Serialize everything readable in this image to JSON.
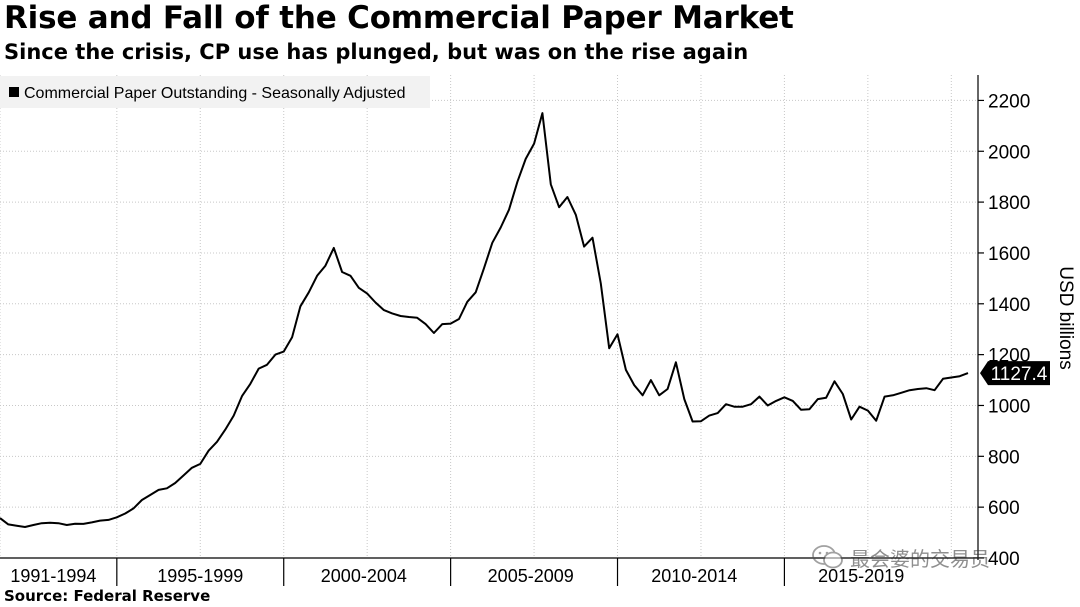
{
  "header": {
    "title": "Rise and Fall of the Commercial Paper Market",
    "subtitle": "Since the crisis, CP use has plunged, but was on the rise again"
  },
  "footer": {
    "source": "Source: Federal Reserve",
    "watermark": "最会婆的交易员"
  },
  "colors": {
    "line": "#000000",
    "grid": "#c8c8c8",
    "legend_bg": "#f2f2f2",
    "badge_bg": "#000000",
    "badge_text": "#ffffff"
  },
  "chart_data": {
    "type": "line",
    "title": "Rise and Fall of the Commercial Paper Market",
    "subtitle": "Since the crisis, CP use has plunged, but was on the rise again",
    "xlabel": "",
    "ylabel": "USD billions",
    "ylim": [
      400,
      2300
    ],
    "yticks": [
      400,
      600,
      800,
      1000,
      1200,
      1400,
      1600,
      1800,
      2000,
      2200
    ],
    "xlim": [
      1991.0,
      2020.0
    ],
    "x_period_labels": [
      "1991-1994",
      "1995-1999",
      "2000-2004",
      "2005-2009",
      "2010-2014",
      "2015-2019"
    ],
    "x_period_centers": [
      1992.6,
      1997.0,
      2001.9,
      2006.9,
      2011.8,
      2016.8
    ],
    "x_boundaries": [
      1994.5,
      1999.5,
      2004.5,
      2009.5,
      2014.5
    ],
    "x_gridlines": [
      1991.0,
      1994.5,
      1997.0,
      1999.5,
      2002.0,
      2004.5,
      2007.0,
      2009.5,
      2012.0,
      2014.5,
      2017.0,
      2019.5
    ],
    "grid": true,
    "legend": {
      "position": "top-left",
      "entries": [
        "Commercial Paper Outstanding - Seasonally Adjusted"
      ]
    },
    "last_value_label": "1127.4",
    "series": [
      {
        "name": "Commercial Paper Outstanding - Seasonally Adjusted",
        "x": [
          1991.0,
          1991.25,
          1991.5,
          1991.75,
          1992.0,
          1992.25,
          1992.5,
          1992.75,
          1993.0,
          1993.25,
          1993.5,
          1993.75,
          1994.0,
          1994.25,
          1994.5,
          1994.75,
          1995.0,
          1995.25,
          1995.5,
          1995.75,
          1996.0,
          1996.25,
          1996.5,
          1996.75,
          1997.0,
          1997.25,
          1997.5,
          1997.75,
          1998.0,
          1998.25,
          1998.5,
          1998.75,
          1999.0,
          1999.25,
          1999.5,
          1999.75,
          2000.0,
          2000.25,
          2000.5,
          2000.75,
          2001.0,
          2001.25,
          2001.5,
          2001.75,
          2002.0,
          2002.25,
          2002.5,
          2002.75,
          2003.0,
          2003.25,
          2003.5,
          2003.75,
          2004.0,
          2004.25,
          2004.5,
          2004.75,
          2005.0,
          2005.25,
          2005.5,
          2005.75,
          2006.0,
          2006.25,
          2006.5,
          2006.75,
          2007.0,
          2007.25,
          2007.5,
          2007.75,
          2008.0,
          2008.25,
          2008.5,
          2008.75,
          2009.0,
          2009.25,
          2009.5,
          2009.75,
          2010.0,
          2010.25,
          2010.5,
          2010.75,
          2011.0,
          2011.25,
          2011.5,
          2011.75,
          2012.0,
          2012.25,
          2012.5,
          2012.75,
          2013.0,
          2013.25,
          2013.5,
          2013.75,
          2014.0,
          2014.25,
          2014.5,
          2014.75,
          2015.0,
          2015.25,
          2015.5,
          2015.75,
          2016.0,
          2016.25,
          2016.5,
          2016.75,
          2017.0,
          2017.25,
          2017.5,
          2017.75,
          2018.0,
          2018.25,
          2018.5,
          2018.75,
          2019.0,
          2019.25,
          2019.5,
          2019.75,
          2020.0
        ],
        "values": [
          557,
          532,
          527,
          522,
          530,
          537,
          539,
          537,
          530,
          535,
          534,
          540,
          547,
          550,
          560,
          575,
          595,
          628,
          648,
          668,
          674,
          695,
          725,
          755,
          770,
          822,
          857,
          905,
          960,
          1037,
          1085,
          1145,
          1160,
          1200,
          1212,
          1268,
          1390,
          1445,
          1510,
          1550,
          1620,
          1525,
          1510,
          1463,
          1440,
          1405,
          1375,
          1362,
          1352,
          1348,
          1345,
          1320,
          1285,
          1320,
          1322,
          1340,
          1408,
          1445,
          1540,
          1640,
          1700,
          1770,
          1880,
          1970,
          2030,
          2150,
          1870,
          1780,
          1820,
          1750,
          1625,
          1660,
          1480,
          1225,
          1280,
          1140,
          1080,
          1040,
          1100,
          1040,
          1065,
          1170,
          1025,
          937,
          938,
          960,
          970,
          1005,
          995,
          995,
          1005,
          1035,
          1000,
          1018,
          1032,
          1018,
          983,
          985,
          1025,
          1030,
          1095,
          1045,
          945,
          995,
          980,
          940,
          1035,
          1040,
          1050,
          1060,
          1065,
          1068,
          1060,
          1105,
          1110,
          1115,
          1127.4
        ]
      }
    ]
  }
}
